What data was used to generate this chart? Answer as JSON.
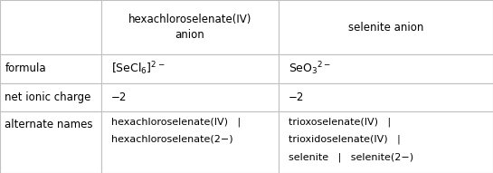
{
  "background_color": "#ffffff",
  "border_color": "#c0c0c0",
  "text_color": "#000000",
  "font_size": 8.5,
  "col_bounds": [
    0.0,
    0.205,
    0.565,
    1.0
  ],
  "row_bounds": [
    1.0,
    0.685,
    0.52,
    0.355,
    0.0
  ],
  "header_texts": [
    "hexachloroselenate(IV)\nanion",
    "selenite anion"
  ],
  "row_label_texts": [
    "formula",
    "net ionic charge",
    "alternate names"
  ],
  "charge": "−2",
  "alt1_lines": [
    "hexachloroselenate(IV)   |",
    "hexachloroselenate(2−)"
  ],
  "alt2_lines": [
    "trioxoselenate(IV)   |",
    "trioxidoselenate(IV)   |",
    "selenite   |   selenite(2−)"
  ]
}
